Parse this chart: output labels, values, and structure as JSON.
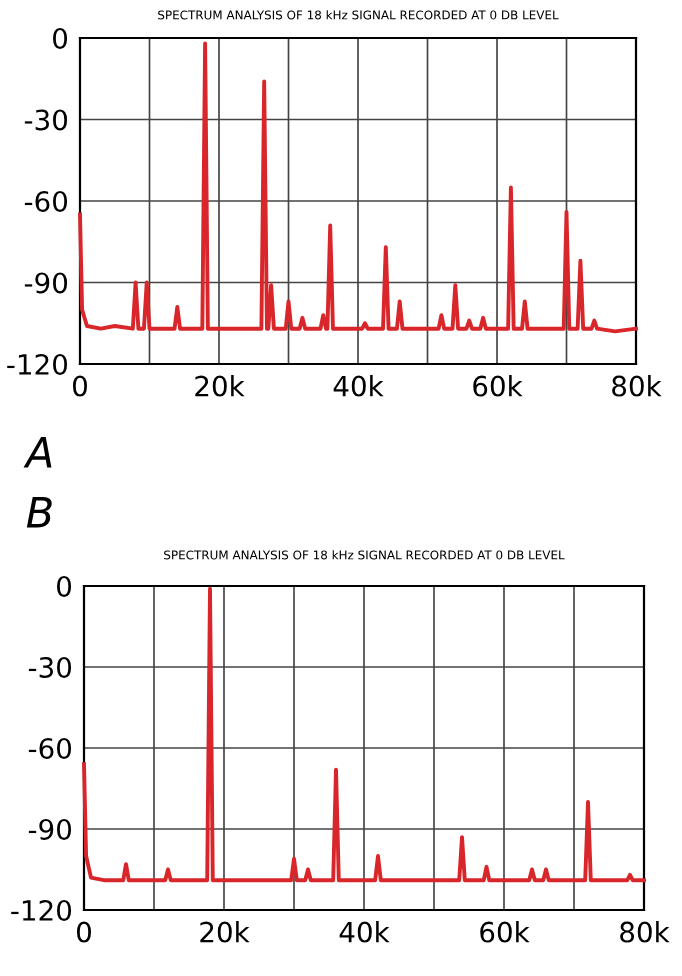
{
  "chart_data": [
    {
      "type": "line",
      "title": "SPECTRUM ANALYSIS OF 18 kHz SIGNAL RECORDED AT 0 DB LEVEL",
      "annotations": [
        "A"
      ],
      "x": [
        0,
        0.3,
        1,
        3,
        5,
        7.6,
        8,
        8.4,
        9.2,
        9.6,
        10,
        13.6,
        14,
        14.4,
        17.6,
        18,
        18.4,
        26.1,
        26.5,
        26.9,
        27.1,
        27.5,
        27.9,
        29.6,
        30,
        30.4,
        31.6,
        32,
        32.4,
        34.6,
        35,
        35.4,
        35.6,
        36,
        36.4,
        40.6,
        41,
        41.4,
        43.6,
        44,
        44.4,
        45.6,
        46,
        46.4,
        51.6,
        52,
        52.4,
        53.6,
        54,
        54.4,
        55.6,
        56,
        56.4,
        57.6,
        58,
        58.4,
        61.6,
        62,
        62.4,
        63.6,
        64,
        64.4,
        69.6,
        70,
        70.4,
        71.6,
        72,
        72.4,
        73.6,
        74,
        74.4,
        77,
        80
      ],
      "series": [
        {
          "color": "#d8262a",
          "values": [
            -65,
            -100,
            -106,
            -107,
            -106,
            -107,
            -90,
            -107,
            -107,
            -90,
            -107,
            -107,
            -99,
            -107,
            -107,
            -2,
            -107,
            -107,
            -16,
            -107,
            -107,
            -91,
            -107,
            -107,
            -97,
            -107,
            -107,
            -103,
            -107,
            -107,
            -102,
            -107,
            -107,
            -69,
            -107,
            -107,
            -105,
            -107,
            -107,
            -77,
            -107,
            -107,
            -97,
            -107,
            -107,
            -102,
            -107,
            -107,
            -91,
            -107,
            -107,
            -104,
            -107,
            -107,
            -103,
            -107,
            -107,
            -55,
            -107,
            -107,
            -97,
            -107,
            -107,
            -64,
            -107,
            -107,
            -82,
            -107,
            -107,
            -104,
            -107,
            -108,
            -107
          ]
        }
      ],
      "xlim": [
        0,
        80
      ],
      "xticks": [
        0,
        {
          "value": 10,
          "label": null
        },
        {
          "value": 20,
          "label": "20k"
        },
        {
          "value": 30,
          "label": null
        },
        {
          "value": 40,
          "label": "40k"
        },
        {
          "value": 50,
          "label": null
        },
        {
          "value": 60,
          "label": "60k"
        },
        {
          "value": 70,
          "label": null
        },
        {
          "value": 80,
          "label": "80k"
        }
      ],
      "ylim": [
        -120,
        0
      ],
      "yticks": [
        -120,
        -90,
        -60,
        -30,
        0
      ],
      "grid": true,
      "marker": "none",
      "line_style": "solid"
    },
    {
      "type": "line",
      "title": "SPECTRUM ANALYSIS OF 18 kHz SIGNAL RECORDED AT 0 DB LEVEL",
      "annotations": [
        "B"
      ],
      "x": [
        0,
        0.3,
        1,
        3,
        5.6,
        6,
        6.4,
        11.6,
        12,
        12.4,
        17.6,
        18,
        18.4,
        29.6,
        30,
        30.4,
        31.6,
        32,
        32.4,
        35.6,
        36,
        36.4,
        41.6,
        42,
        42.4,
        53.6,
        54,
        54.4,
        57.1,
        57.5,
        57.9,
        63.6,
        64,
        64.4,
        65.6,
        66,
        66.4,
        71.6,
        72,
        72.4,
        77.6,
        78,
        78.4,
        80
      ],
      "series": [
        {
          "color": "#d8262a",
          "values": [
            -66,
            -100,
            -108,
            -109,
            -109,
            -103,
            -109,
            -109,
            -105,
            -109,
            -109,
            -1,
            -109,
            -109,
            -101,
            -109,
            -109,
            -105,
            -109,
            -109,
            -68,
            -109,
            -109,
            -100,
            -109,
            -109,
            -93,
            -109,
            -109,
            -104,
            -109,
            -109,
            -105,
            -109,
            -109,
            -105,
            -109,
            -109,
            -80,
            -109,
            -109,
            -107,
            -109,
            -109
          ]
        }
      ],
      "xlim": [
        0,
        80
      ],
      "xticks": [
        0,
        {
          "value": 10,
          "label": null
        },
        {
          "value": 20,
          "label": "20k"
        },
        {
          "value": 30,
          "label": null
        },
        {
          "value": 40,
          "label": "40k"
        },
        {
          "value": 50,
          "label": null
        },
        {
          "value": 60,
          "label": "60k"
        },
        {
          "value": 70,
          "label": null
        },
        {
          "value": 80,
          "label": "80k"
        }
      ],
      "ylim": [
        -120,
        0
      ],
      "yticks": [
        -120,
        -90,
        -60,
        -30,
        0
      ],
      "grid": true,
      "marker": "none",
      "line_style": "solid"
    }
  ]
}
